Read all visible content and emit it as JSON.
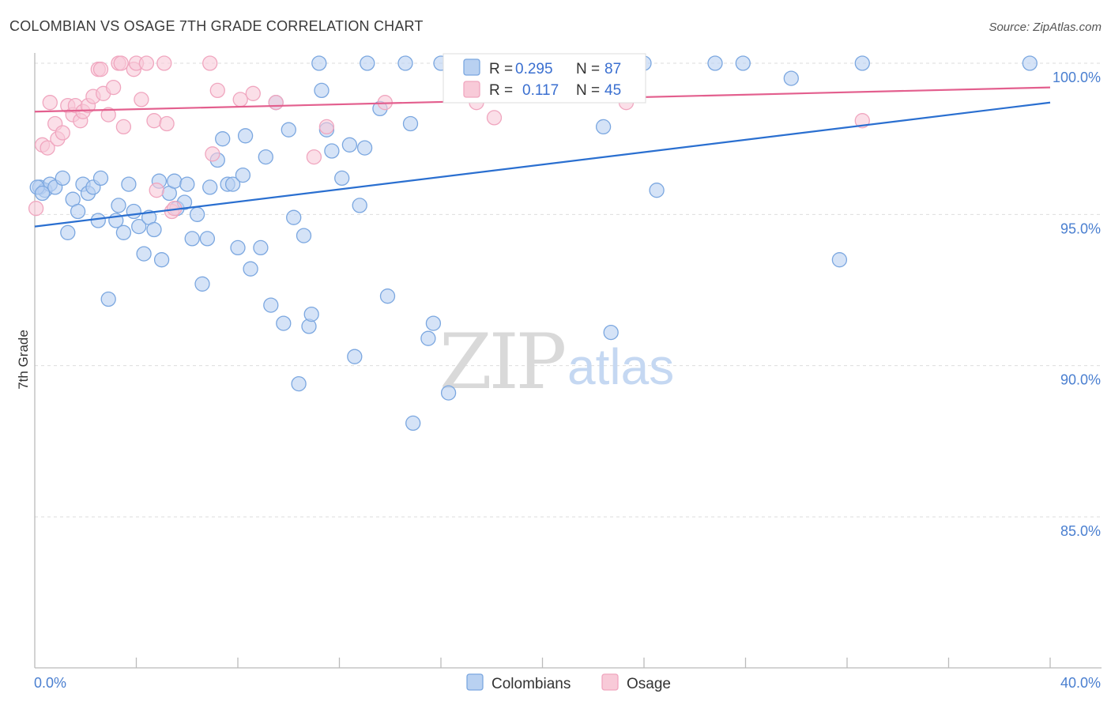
{
  "chart_data": {
    "type": "scatter",
    "title": "COLOMBIAN VS OSAGE 7TH GRADE CORRELATION CHART",
    "source": "Source: ZipAtlas.com",
    "ylabel": "7th Grade",
    "xlim": [
      0,
      40
    ],
    "ylim": [
      80.5,
      100.5
    ],
    "x_tick_labels": [
      {
        "value": 0,
        "label": "0.0%"
      },
      {
        "value": 40,
        "label": "40.0%"
      }
    ],
    "y_tick_labels": [
      {
        "value": 100,
        "label": "100.0%"
      },
      {
        "value": 95,
        "label": "95.0%"
      },
      {
        "value": 90,
        "label": "90.0%"
      },
      {
        "value": 85,
        "label": "85.0%"
      }
    ],
    "grid": "horizontal dashed",
    "legend_position": "bottom-center",
    "watermark": {
      "part1": "ZIP",
      "part2": "atlas"
    },
    "stats_box": [
      {
        "r_label": "R =",
        "r_value": "0.295",
        "n_label": "N =",
        "n_value": "87"
      },
      {
        "r_label": "R =",
        "r_value": "0.117",
        "n_label": "N =",
        "n_value": "45"
      }
    ],
    "series": [
      {
        "name": "Colombians",
        "color": "#7ba7e0",
        "fill": "#b9d1f1",
        "line_color": "#2a6fd0",
        "trend": {
          "x": [
            0,
            40
          ],
          "y": [
            94.6,
            98.7
          ]
        },
        "points": [
          [
            0.2,
            95.9
          ],
          [
            0.4,
            95.8
          ],
          [
            0.6,
            96.0
          ],
          [
            0.8,
            95.9
          ],
          [
            1.1,
            96.2
          ],
          [
            1.3,
            94.4
          ],
          [
            1.5,
            95.5
          ],
          [
            1.7,
            95.1
          ],
          [
            1.9,
            96.0
          ],
          [
            2.1,
            95.7
          ],
          [
            2.3,
            95.9
          ],
          [
            2.5,
            94.8
          ],
          [
            2.6,
            96.2
          ],
          [
            2.9,
            92.2
          ],
          [
            3.2,
            94.8
          ],
          [
            3.3,
            95.3
          ],
          [
            3.5,
            94.4
          ],
          [
            3.7,
            96.0
          ],
          [
            3.9,
            95.1
          ],
          [
            4.1,
            94.6
          ],
          [
            4.3,
            93.7
          ],
          [
            4.5,
            94.9
          ],
          [
            4.7,
            94.5
          ],
          [
            4.9,
            96.1
          ],
          [
            5.0,
            93.5
          ],
          [
            5.3,
            95.7
          ],
          [
            5.5,
            96.1
          ],
          [
            5.6,
            95.2
          ],
          [
            5.9,
            95.4
          ],
          [
            6.0,
            96.0
          ],
          [
            6.2,
            94.2
          ],
          [
            6.4,
            95.0
          ],
          [
            6.6,
            92.7
          ],
          [
            6.8,
            94.2
          ],
          [
            6.9,
            95.9
          ],
          [
            7.2,
            96.8
          ],
          [
            7.4,
            97.5
          ],
          [
            7.6,
            96.0
          ],
          [
            7.8,
            96.0
          ],
          [
            8.0,
            93.9
          ],
          [
            8.2,
            96.3
          ],
          [
            8.3,
            97.6
          ],
          [
            8.5,
            93.2
          ],
          [
            8.9,
            93.9
          ],
          [
            9.1,
            96.9
          ],
          [
            9.3,
            92.0
          ],
          [
            9.5,
            98.7
          ],
          [
            9.8,
            91.4
          ],
          [
            10.0,
            97.8
          ],
          [
            10.2,
            94.9
          ],
          [
            10.4,
            89.4
          ],
          [
            10.6,
            94.3
          ],
          [
            10.8,
            91.3
          ],
          [
            10.9,
            91.7
          ],
          [
            11.2,
            100.0
          ],
          [
            11.3,
            99.1
          ],
          [
            11.5,
            97.8
          ],
          [
            11.7,
            97.1
          ],
          [
            12.1,
            96.2
          ],
          [
            12.4,
            97.3
          ],
          [
            12.6,
            90.3
          ],
          [
            12.8,
            95.3
          ],
          [
            13.0,
            97.2
          ],
          [
            13.1,
            100.0
          ],
          [
            13.6,
            98.5
          ],
          [
            13.9,
            92.3
          ],
          [
            14.6,
            100.0
          ],
          [
            14.8,
            98.0
          ],
          [
            15.5,
            90.9
          ],
          [
            15.7,
            91.4
          ],
          [
            16.0,
            100.0
          ],
          [
            16.3,
            89.1
          ],
          [
            17.2,
            100.0
          ],
          [
            18.4,
            100.0
          ],
          [
            14.9,
            88.1
          ],
          [
            22.4,
            97.9
          ],
          [
            22.7,
            91.1
          ],
          [
            24.0,
            100.0
          ],
          [
            24.5,
            95.8
          ],
          [
            26.8,
            100.0
          ],
          [
            27.9,
            100.0
          ],
          [
            29.8,
            99.5
          ],
          [
            31.7,
            93.5
          ],
          [
            32.6,
            100.0
          ],
          [
            39.2,
            100.0
          ],
          [
            0.1,
            95.9
          ],
          [
            0.3,
            95.7
          ]
        ]
      },
      {
        "name": "Osage",
        "color": "#f0a6bf",
        "fill": "#f8cad8",
        "line_color": "#e35f8e",
        "trend": {
          "x": [
            0,
            40
          ],
          "y": [
            98.4,
            99.2
          ]
        },
        "points": [
          [
            0.05,
            95.2
          ],
          [
            0.3,
            97.3
          ],
          [
            0.5,
            97.2
          ],
          [
            0.6,
            98.7
          ],
          [
            0.8,
            98.0
          ],
          [
            0.9,
            97.5
          ],
          [
            1.1,
            97.7
          ],
          [
            1.3,
            98.6
          ],
          [
            1.5,
            98.3
          ],
          [
            1.6,
            98.6
          ],
          [
            1.8,
            98.1
          ],
          [
            1.9,
            98.4
          ],
          [
            2.1,
            98.6
          ],
          [
            2.3,
            98.9
          ],
          [
            2.5,
            99.8
          ],
          [
            2.6,
            99.8
          ],
          [
            2.7,
            99.0
          ],
          [
            2.9,
            98.3
          ],
          [
            3.1,
            99.2
          ],
          [
            3.3,
            100.0
          ],
          [
            3.4,
            100.0
          ],
          [
            3.5,
            97.9
          ],
          [
            3.9,
            99.8
          ],
          [
            4.0,
            100.0
          ],
          [
            4.2,
            98.8
          ],
          [
            4.4,
            100.0
          ],
          [
            4.7,
            98.1
          ],
          [
            4.8,
            95.8
          ],
          [
            5.1,
            100.0
          ],
          [
            5.2,
            98.0
          ],
          [
            5.4,
            95.1
          ],
          [
            5.5,
            95.2
          ],
          [
            6.9,
            100.0
          ],
          [
            7.0,
            97.0
          ],
          [
            7.2,
            99.1
          ],
          [
            8.1,
            98.8
          ],
          [
            8.6,
            99.0
          ],
          [
            9.5,
            98.7
          ],
          [
            11.0,
            96.9
          ],
          [
            11.5,
            97.9
          ],
          [
            13.8,
            98.7
          ],
          [
            17.4,
            98.7
          ],
          [
            18.1,
            98.2
          ],
          [
            23.3,
            98.7
          ],
          [
            32.6,
            98.1
          ]
        ]
      }
    ]
  }
}
